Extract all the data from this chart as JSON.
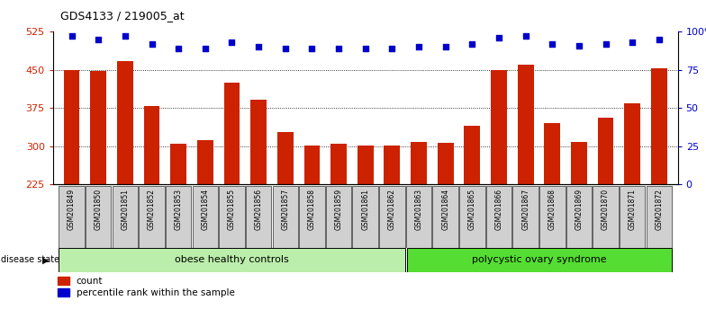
{
  "title": "GDS4133 / 219005_at",
  "samples": [
    "GSM201849",
    "GSM201850",
    "GSM201851",
    "GSM201852",
    "GSM201853",
    "GSM201854",
    "GSM201855",
    "GSM201856",
    "GSM201857",
    "GSM201858",
    "GSM201859",
    "GSM201861",
    "GSM201862",
    "GSM201863",
    "GSM201864",
    "GSM201865",
    "GSM201866",
    "GSM201867",
    "GSM201868",
    "GSM201869",
    "GSM201870",
    "GSM201871",
    "GSM201872"
  ],
  "counts": [
    450,
    448,
    468,
    380,
    305,
    312,
    425,
    392,
    328,
    302,
    305,
    302,
    302,
    308,
    306,
    340,
    450,
    460,
    345,
    308,
    357,
    385,
    453
  ],
  "percentiles": [
    97,
    95,
    97,
    92,
    89,
    89,
    93,
    90,
    89,
    89,
    89,
    89,
    89,
    90,
    90,
    92,
    96,
    97,
    92,
    91,
    92,
    93,
    95
  ],
  "group1_label": "obese healthy controls",
  "group1_count": 13,
  "group2_label": "polycystic ovary syndrome",
  "group2_count": 10,
  "disease_state_label": "disease state",
  "bar_color": "#cc2200",
  "dot_color": "#0000cc",
  "ylim_left": [
    225,
    525
  ],
  "yticks_left": [
    225,
    300,
    375,
    450,
    525
  ],
  "ylim_right": [
    0,
    100
  ],
  "yticks_right": [
    0,
    25,
    50,
    75,
    100
  ],
  "grid_values": [
    300,
    375,
    450
  ],
  "legend_count_label": "count",
  "legend_pct_label": "percentile rank within the sample",
  "tick_label_bg": "#d0d0d0",
  "group_box_color1": "#bbeeaa",
  "group_box_color2": "#55dd33"
}
